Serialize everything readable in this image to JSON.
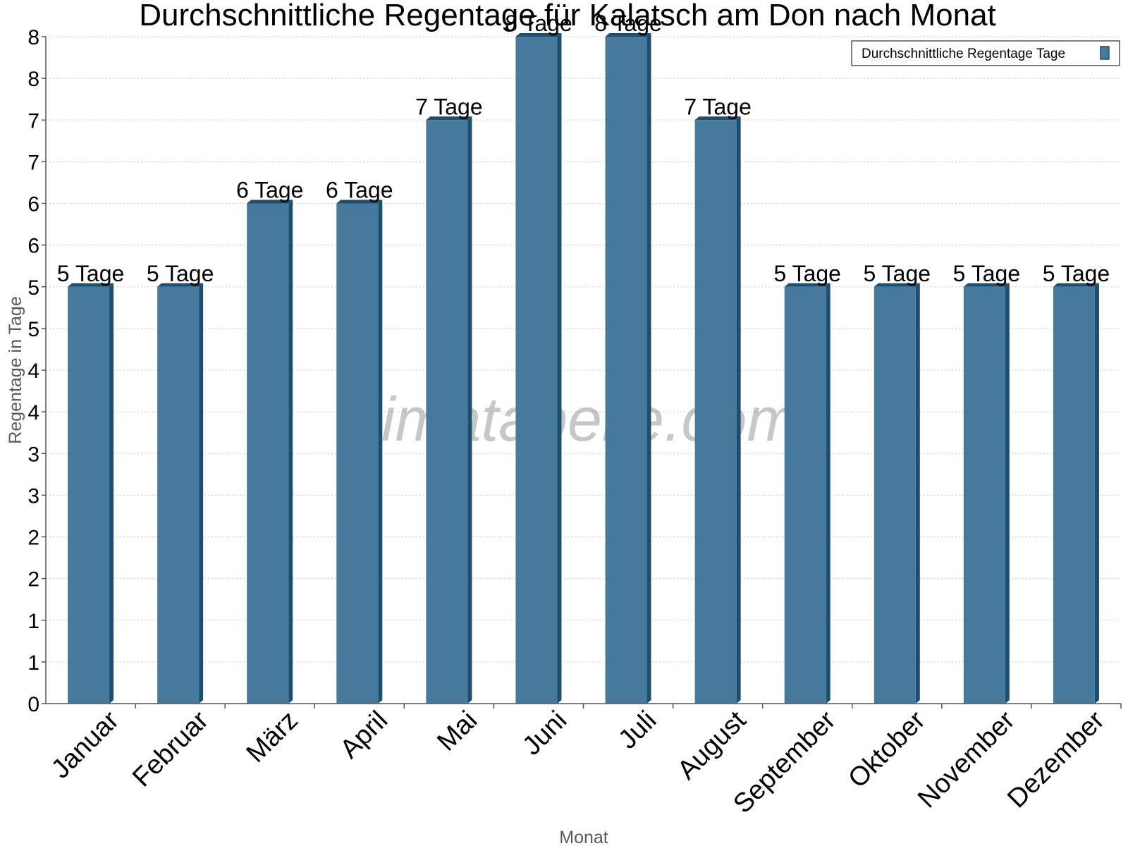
{
  "chart_data": {
    "type": "bar",
    "title": "Durchschnittliche Regentage für Kalatsch am Don nach Monat",
    "xlabel": "Monat",
    "ylabel": "Regentage in Tage",
    "categories": [
      "Januar",
      "Februar",
      "März",
      "April",
      "Mai",
      "Juni",
      "Juli",
      "August",
      "September",
      "Oktober",
      "November",
      "Dezember"
    ],
    "series": [
      {
        "name": "Durchschnittliche Regentage Tage",
        "values": [
          5,
          5,
          6,
          6,
          7,
          8,
          8,
          7,
          5,
          5,
          5,
          5
        ],
        "labels": [
          "5 Tage",
          "5 Tage",
          "6 Tage",
          "6 Tage",
          "7 Tage",
          "8 Tage",
          "8 Tage",
          "7 Tage",
          "5 Tage",
          "5 Tage",
          "5 Tage",
          "5 Tage"
        ]
      }
    ],
    "ylim": [
      0,
      8
    ],
    "yticks": [
      0,
      0.5,
      1,
      1.5,
      2,
      2.5,
      3,
      3.5,
      4,
      4.5,
      5,
      5.5,
      6,
      6.5,
      7,
      7.5,
      8
    ],
    "ytick_labels": [
      "0",
      "1",
      "1",
      "2",
      "2",
      "3",
      "3",
      "4",
      "4",
      "5",
      "5",
      "6",
      "6",
      "7",
      "7",
      "8",
      "8"
    ],
    "grid": true,
    "legend_position": "top-right",
    "watermark": "klimatabelle.com",
    "colors": {
      "bar": "#467a9c",
      "bar_side": "#1d4e70",
      "bar_top": "#1d4e70"
    }
  }
}
